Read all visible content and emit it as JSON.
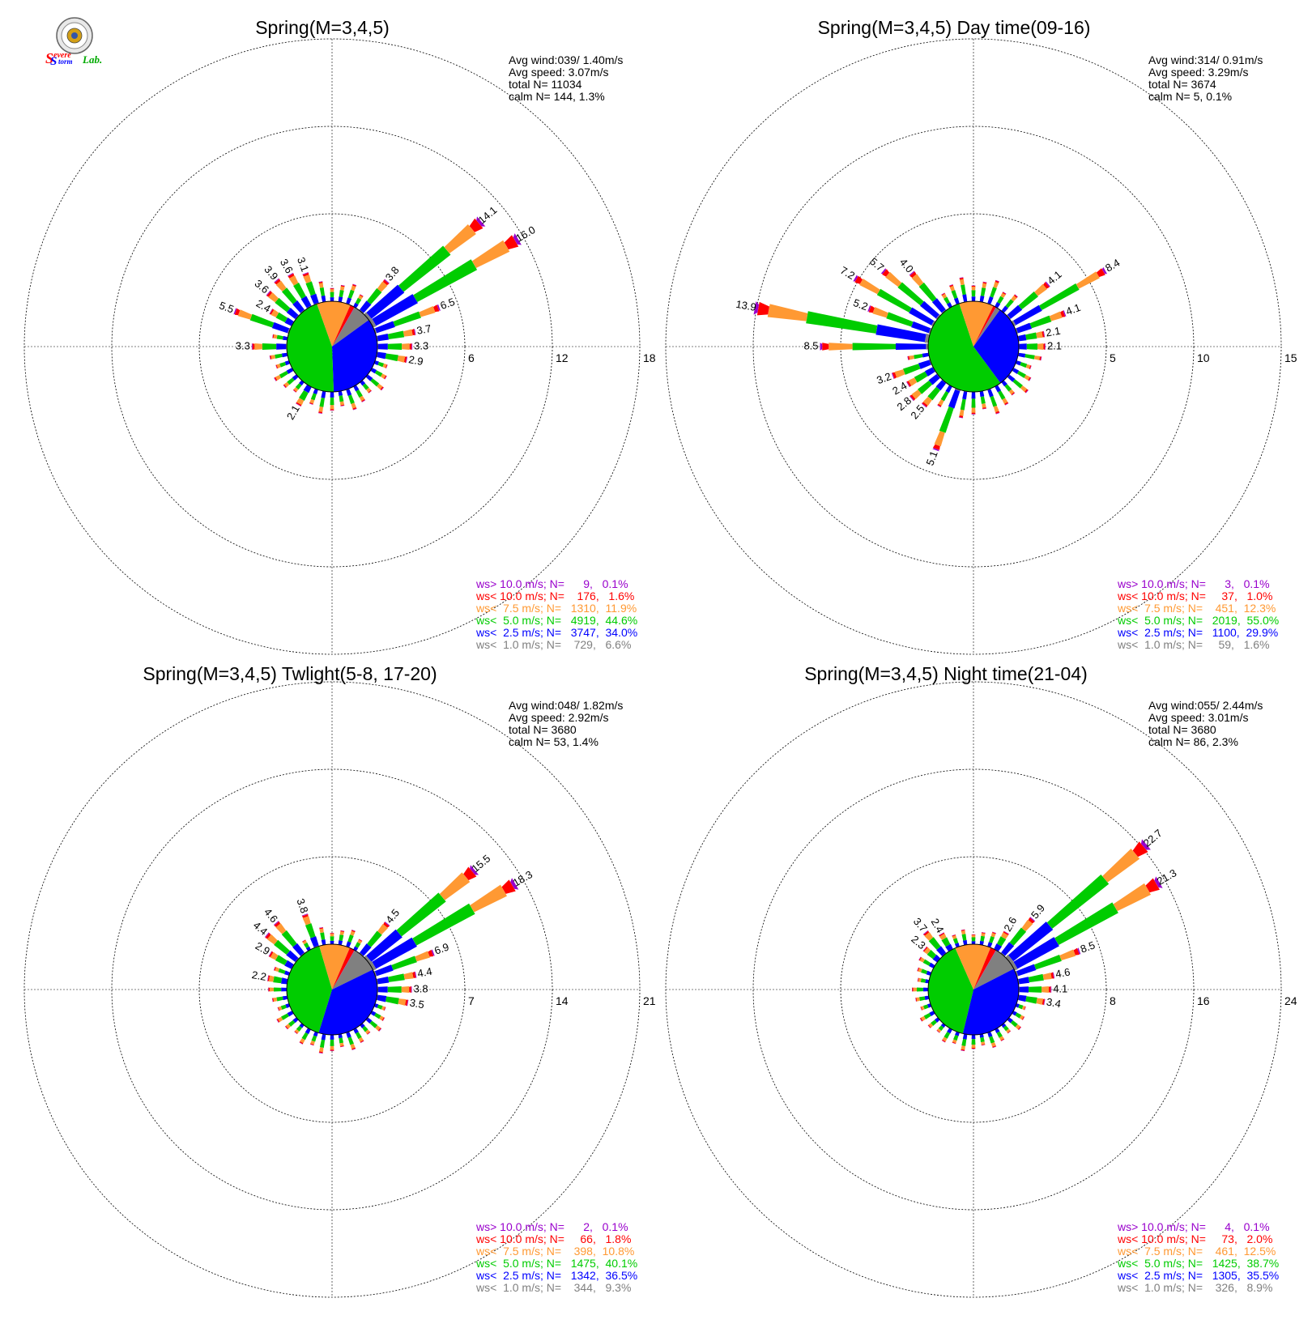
{
  "logo": {
    "text_a": "S",
    "text_b": "evere",
    "text_c": "S",
    "text_d": "torm",
    "text_e": "Lab."
  },
  "speed_colors": {
    "gt10": "#9900cc",
    "lt10": "#ff0000",
    "lt7_5": "#ff9933",
    "lt5": "#00cc00",
    "lt2_5": "#0000ff",
    "lt1": "#808080"
  },
  "chart_data": [
    {
      "type": "polar-windrose",
      "title": "Spring(M=3,4,5)",
      "stats": {
        "avg_wind": "Avg wind:039/ 1.40m/s",
        "avg_speed": "Avg speed: 3.07m/s",
        "total": "total N=      11034",
        "calm": "calm N=    144,   1.3%"
      },
      "ring_labels": [
        "6",
        "12",
        "18"
      ],
      "rmax": 18,
      "pie": [
        6.6,
        34.0,
        44.6,
        11.9,
        1.6,
        0.1
      ],
      "bars": [
        {
          "dir": 50,
          "total": 14.1,
          "label": "14.1"
        },
        {
          "dir": 60,
          "total": 16.0,
          "label": "16.0"
        },
        {
          "dir": 40,
          "total": 3.8,
          "label": "3.8"
        },
        {
          "dir": 70,
          "total": 6.5,
          "label": "6.5"
        },
        {
          "dir": 80,
          "total": 3.7,
          "label": "3.7"
        },
        {
          "dir": 90,
          "total": 3.3,
          "label": "3.3"
        },
        {
          "dir": 100,
          "total": 2.9,
          "label": "2.9"
        },
        {
          "dir": 290,
          "total": 5.5,
          "label": "5.5"
        },
        {
          "dir": 300,
          "total": 2.4,
          "label": "2.4"
        },
        {
          "dir": 310,
          "total": 3.6,
          "label": "3.6"
        },
        {
          "dir": 320,
          "total": 3.9,
          "label": "3.9"
        },
        {
          "dir": 330,
          "total": 3.6,
          "label": "3.6"
        },
        {
          "dir": 340,
          "total": 3.1,
          "label": "3.1"
        },
        {
          "dir": 270,
          "total": 3.3,
          "label": "3.3"
        },
        {
          "dir": 210,
          "total": 2.1,
          "label": "2.1"
        }
      ],
      "legend": [
        "ws> 10.0 m/s; N=      9,   0.1%",
        "ws< 10.0 m/s; N=    176,   1.6%",
        "ws<  7.5 m/s; N=   1310,  11.9%",
        "ws<  5.0 m/s; N=   4919,  44.6%",
        "ws<  2.5 m/s; N=   3747,  34.0%",
        "ws<  1.0 m/s; N=    729,   6.6%"
      ]
    },
    {
      "type": "polar-windrose",
      "title": "Spring(M=3,4,5) Day time(09-16)",
      "stats": {
        "avg_wind": "Avg wind:314/ 0.91m/s",
        "avg_speed": "Avg speed: 3.29m/s",
        "total": "total N=        3674",
        "calm": "calm N=      5,   0.1%"
      },
      "ring_labels": [
        "5",
        "10",
        "15"
      ],
      "rmax": 15,
      "pie": [
        1.6,
        29.9,
        55.0,
        12.3,
        1.0,
        0.1
      ],
      "bars": [
        {
          "dir": 50,
          "total": 4.1,
          "label": "4.1"
        },
        {
          "dir": 60,
          "total": 8.4,
          "label": "8.4"
        },
        {
          "dir": 70,
          "total": 4.1,
          "label": "4.1"
        },
        {
          "dir": 80,
          "total": 2.1,
          "label": "2.1"
        },
        {
          "dir": 90,
          "total": 2.1,
          "label": "2.1"
        },
        {
          "dir": 280,
          "total": 13.9,
          "label": "13.9"
        },
        {
          "dir": 270,
          "total": 8.5,
          "label": "8.5"
        },
        {
          "dir": 290,
          "total": 5.2,
          "label": "5.2"
        },
        {
          "dir": 300,
          "total": 7.2,
          "label": "7.2"
        },
        {
          "dir": 310,
          "total": 5.7,
          "label": "5.7"
        },
        {
          "dir": 320,
          "total": 4.0,
          "label": "4.0"
        },
        {
          "dir": 250,
          "total": 3.2,
          "label": "3.2"
        },
        {
          "dir": 240,
          "total": 2.4,
          "label": "2.4"
        },
        {
          "dir": 230,
          "total": 2.8,
          "label": "2.8"
        },
        {
          "dir": 220,
          "total": 2.5,
          "label": "2.5"
        },
        {
          "dir": 200,
          "total": 5.1,
          "label": "5.1"
        }
      ],
      "legend": [
        "ws> 10.0 m/s; N=      3,   0.1%",
        "ws< 10.0 m/s; N=     37,   1.0%",
        "ws<  7.5 m/s; N=    451,  12.3%",
        "ws<  5.0 m/s; N=   2019,  55.0%",
        "ws<  2.5 m/s; N=   1100,  29.9%",
        "ws<  1.0 m/s; N=     59,   1.6%"
      ]
    },
    {
      "type": "polar-windrose",
      "title": "Spring(M=3,4,5) Twlight(5-8, 17-20)",
      "stats": {
        "avg_wind": "Avg wind:048/ 1.82m/s",
        "avg_speed": "Avg speed: 2.92m/s",
        "total": "total N=        3680",
        "calm": "calm N=     53,   1.4%"
      },
      "ring_labels": [
        "7",
        "14",
        "21"
      ],
      "rmax": 21,
      "pie": [
        9.3,
        36.5,
        40.1,
        10.8,
        1.8,
        0.1
      ],
      "bars": [
        {
          "dir": 50,
          "total": 15.5,
          "label": "15.5"
        },
        {
          "dir": 60,
          "total": 18.3,
          "label": "18.3"
        },
        {
          "dir": 40,
          "total": 4.5,
          "label": "4.5"
        },
        {
          "dir": 70,
          "total": 6.9,
          "label": "6.9"
        },
        {
          "dir": 80,
          "total": 4.4,
          "label": "4.4"
        },
        {
          "dir": 90,
          "total": 3.8,
          "label": "3.8"
        },
        {
          "dir": 100,
          "total": 3.5,
          "label": "3.5"
        },
        {
          "dir": 280,
          "total": 2.2,
          "label": "2.2"
        },
        {
          "dir": 300,
          "total": 2.9,
          "label": "2.9"
        },
        {
          "dir": 310,
          "total": 4.4,
          "label": "4.4"
        },
        {
          "dir": 320,
          "total": 4.6,
          "label": "4.6"
        },
        {
          "dir": 340,
          "total": 3.8,
          "label": "3.8"
        }
      ],
      "legend": [
        "ws> 10.0 m/s; N=      2,   0.1%",
        "ws< 10.0 m/s; N=     66,   1.8%",
        "ws<  7.5 m/s; N=    398,  10.8%",
        "ws<  5.0 m/s; N=   1475,  40.1%",
        "ws<  2.5 m/s; N=   1342,  36.5%",
        "ws<  1.0 m/s; N=    344,   9.3%"
      ]
    },
    {
      "type": "polar-windrose",
      "title": "Spring(M=3,4,5) Night time(21-04)",
      "stats": {
        "avg_wind": "Avg wind:055/ 2.44m/s",
        "avg_speed": "Avg speed: 3.01m/s",
        "total": "total N=        3680",
        "calm": "calm N=     86,   2.3%"
      },
      "ring_labels": [
        "8",
        "16",
        "24"
      ],
      "rmax": 24,
      "pie": [
        8.9,
        35.5,
        38.7,
        12.5,
        2.0,
        0.1
      ],
      "bars": [
        {
          "dir": 50,
          "total": 22.7,
          "label": "22.7"
        },
        {
          "dir": 60,
          "total": 21.3,
          "label": "21.3"
        },
        {
          "dir": 40,
          "total": 5.9,
          "label": "5.9"
        },
        {
          "dir": 30,
          "total": 2.6,
          "label": "2.6"
        },
        {
          "dir": 70,
          "total": 8.5,
          "label": "8.5"
        },
        {
          "dir": 80,
          "total": 4.6,
          "label": "4.6"
        },
        {
          "dir": 90,
          "total": 4.1,
          "label": "4.1"
        },
        {
          "dir": 100,
          "total": 3.4,
          "label": "3.4"
        },
        {
          "dir": 310,
          "total": 2.3,
          "label": "2.3"
        },
        {
          "dir": 320,
          "total": 3.7,
          "label": "3.7"
        },
        {
          "dir": 330,
          "total": 2.4,
          "label": "2.4"
        }
      ],
      "legend": [
        "ws> 10.0 m/s; N=      4,   0.1%",
        "ws< 10.0 m/s; N=     73,   2.0%",
        "ws<  7.5 m/s; N=    461,  12.5%",
        "ws<  5.0 m/s; N=   1425,  38.7%",
        "ws<  2.5 m/s; N=   1305,  35.5%",
        "ws<  1.0 m/s; N=    326,   8.9%"
      ]
    }
  ]
}
